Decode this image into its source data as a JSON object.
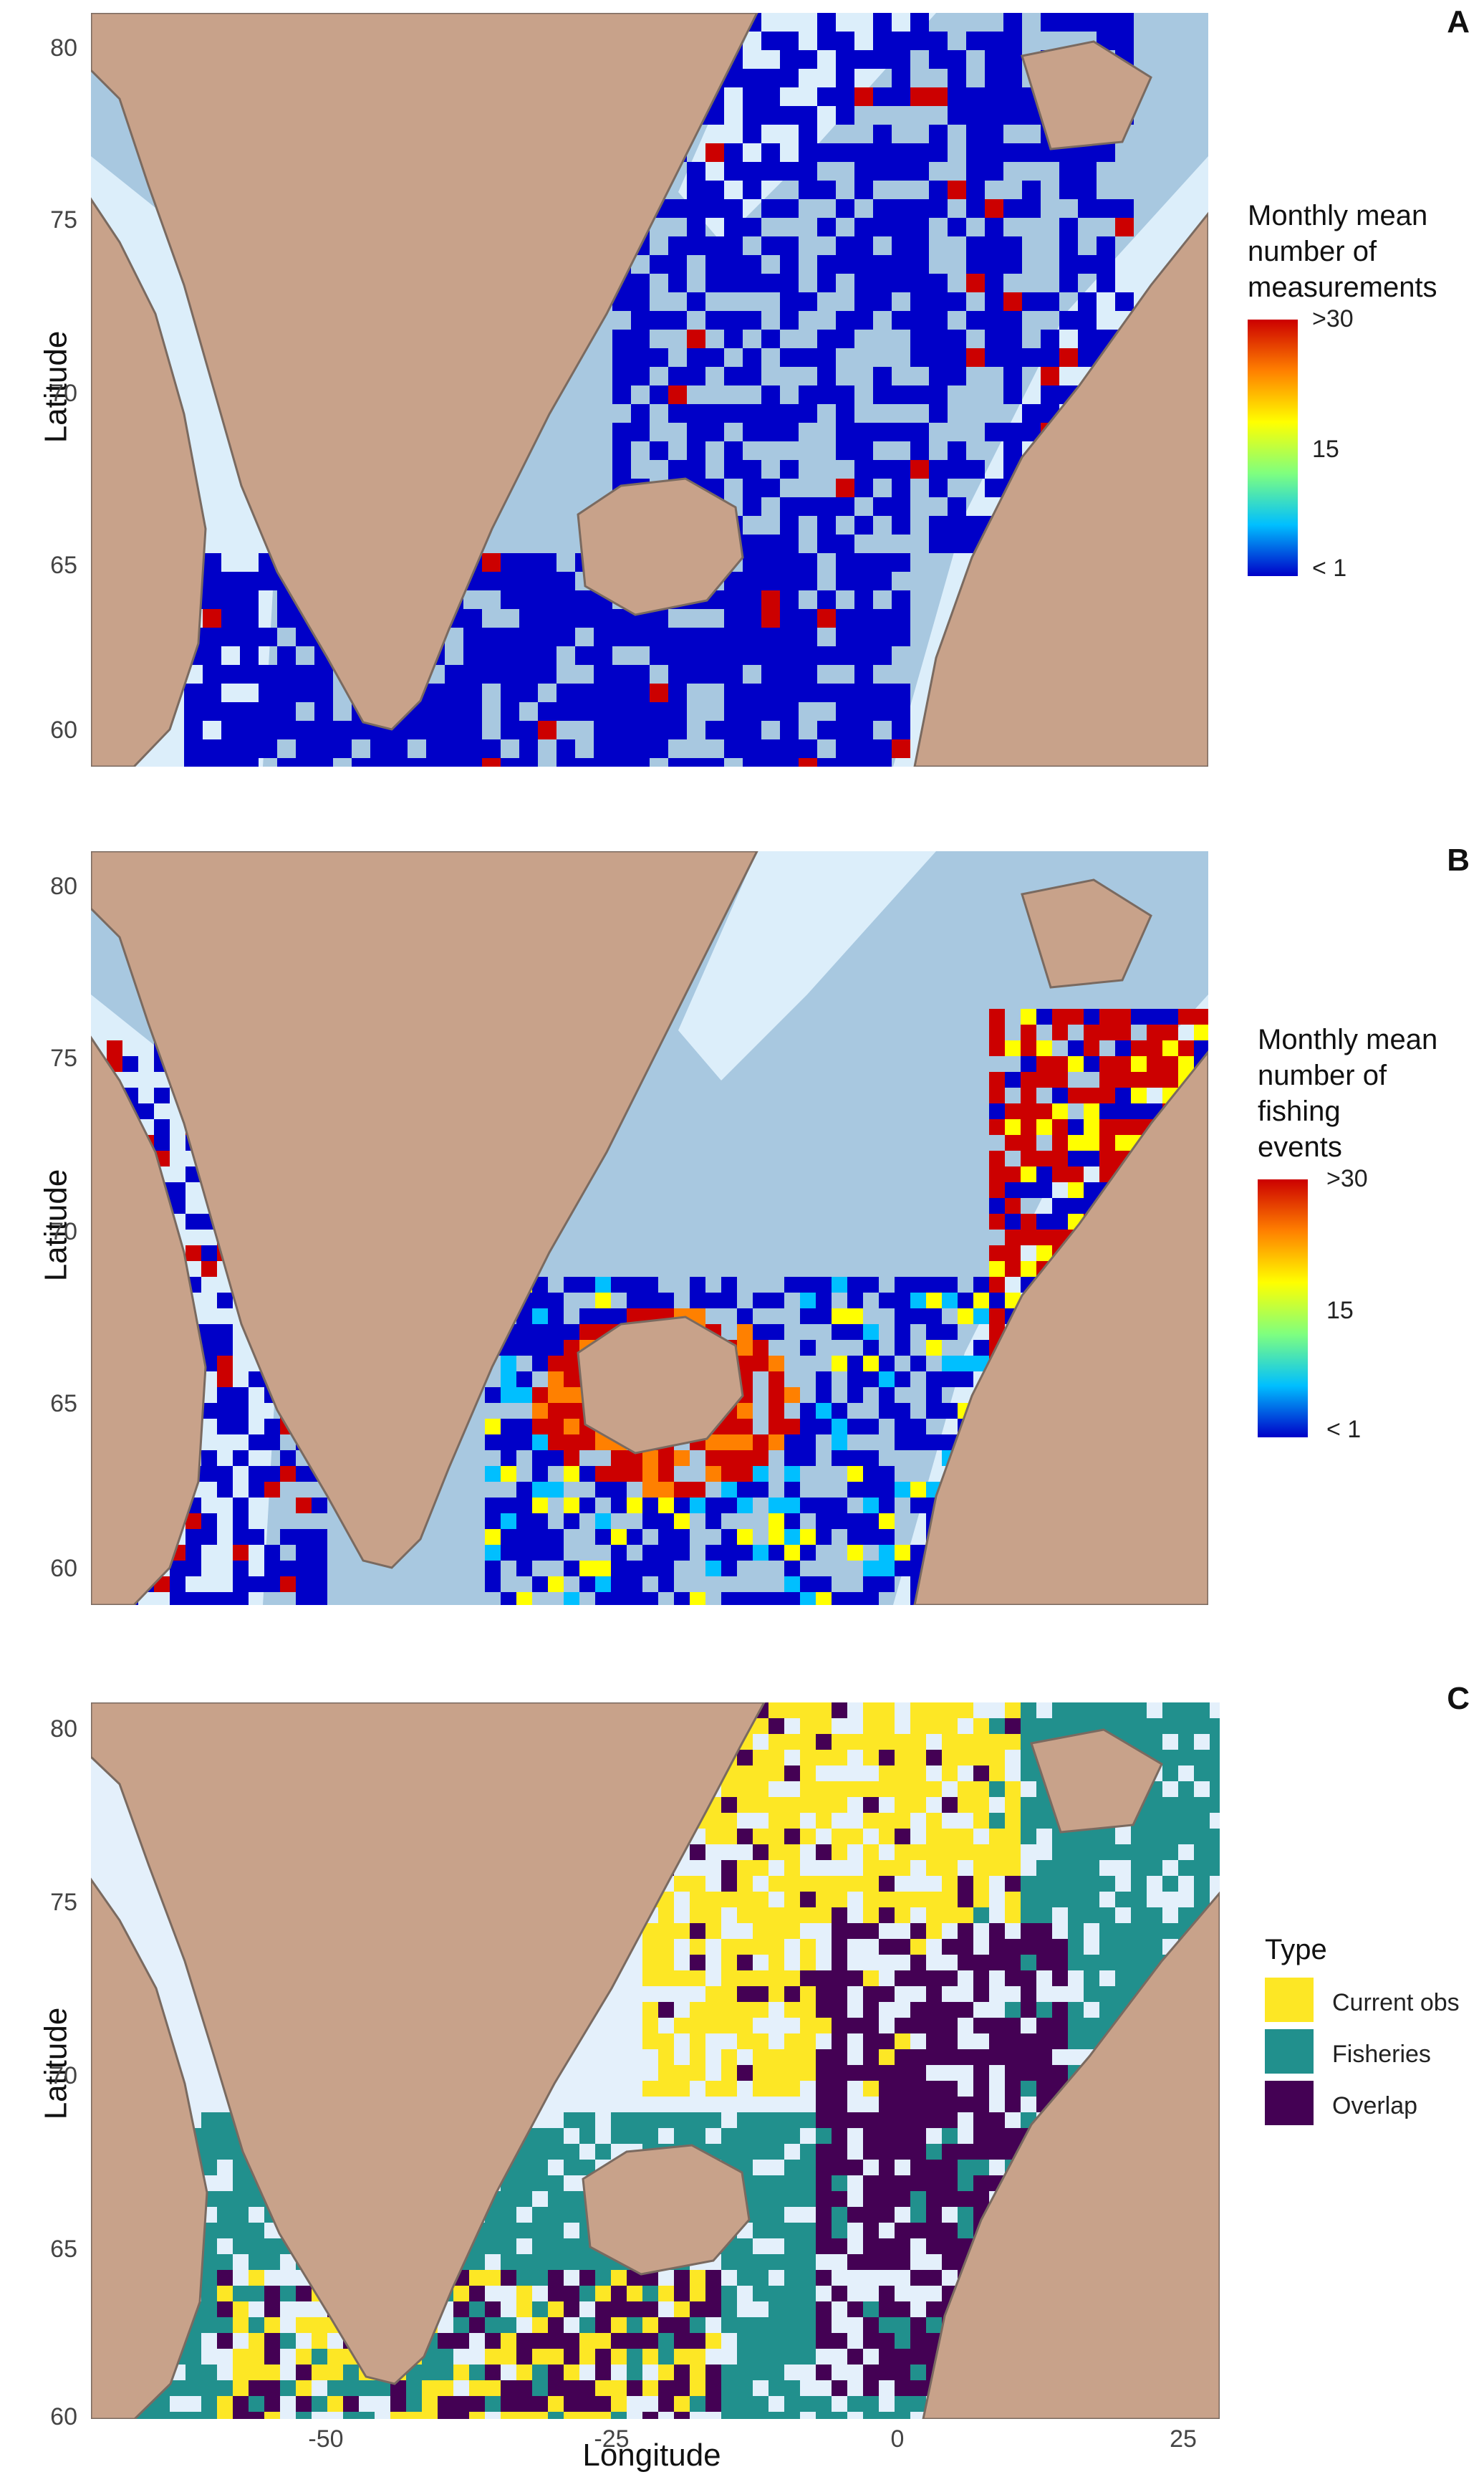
{
  "panels": [
    {
      "id": "A",
      "legend_title_lines": [
        "Monthly mean",
        "number of",
        "measurements"
      ],
      "legend_ticks": [
        ">30",
        "15",
        "< 1"
      ],
      "ylabel": "Latitude",
      "yticks": [
        "80",
        "75",
        "70",
        "65",
        "60"
      ]
    },
    {
      "id": "B",
      "legend_title_lines": [
        "Monthly mean",
        "number of",
        "fishing",
        "events"
      ],
      "legend_ticks": [
        ">30",
        "15",
        "< 1"
      ],
      "ylabel": "Latitude",
      "yticks": [
        "80",
        "75",
        "70",
        "65",
        "60"
      ]
    },
    {
      "id": "C",
      "legend_title": "Type",
      "legend_items": [
        {
          "label": "Current obs",
          "color": "#fde725"
        },
        {
          "label": "Fisheries",
          "color": "#21908d"
        },
        {
          "label": "Overlap",
          "color": "#440154"
        }
      ],
      "ylabel": "Latitude",
      "yticks": [
        "80",
        "75",
        "70",
        "65",
        "60"
      ],
      "xticks": [
        "-50",
        "-25",
        "0",
        "25"
      ],
      "xlabel": "Longitude"
    }
  ],
  "colors": {
    "land": "#c8a28a",
    "ocean_deep": "#a8c8e0",
    "ocean_shelf": "#dceefa",
    "coast_line": "#7a6a60",
    "contour_line": "#333333",
    "colorbar_gradient": [
      "#0000c8",
      "#00bfff",
      "#7fff7f",
      "#ffff00",
      "#ff8000",
      "#cc0000"
    ]
  },
  "map_extent": {
    "lon_range": [
      -72,
      28
    ],
    "lat_range": [
      59,
      81
    ]
  }
}
